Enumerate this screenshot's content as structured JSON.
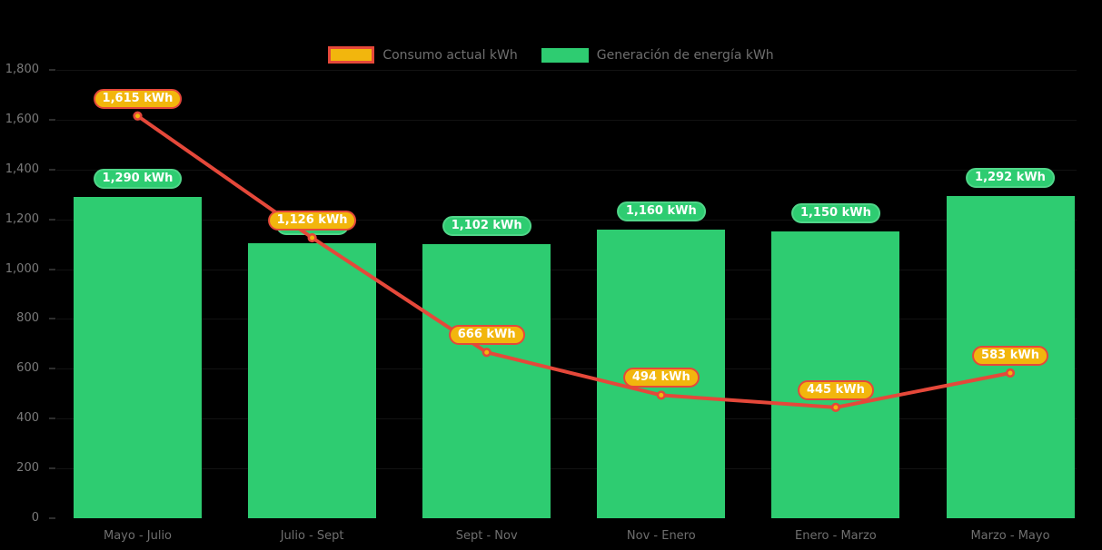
{
  "legend": {
    "items": [
      {
        "label": "Consumo actual kWh",
        "series": "line"
      },
      {
        "label": "Generación de energía kWh",
        "series": "bar"
      }
    ]
  },
  "chart_data": {
    "type": "combo-bar-line",
    "title": "",
    "categories": [
      "Mayo - Julio",
      "Julio - Sept",
      "Sept - Nov",
      "Nov - Enero",
      "Enero - Marzo",
      "Marzo - Mayo"
    ],
    "series": [
      {
        "name": "Generación de energía kWh",
        "type": "bar",
        "color": "#2ecc71",
        "values": [
          1290,
          1105,
          1102,
          1160,
          1150,
          1292
        ],
        "labels": [
          "1,290 kWh",
          null,
          "1,102 kWh",
          "1,160 kWh",
          "1,150 kWh",
          "1,292 kWh"
        ],
        "note": "second bar value label is occluded by the 1,126 kWh line label; 1105 is estimated from bar height"
      },
      {
        "name": "Consumo actual kWh",
        "type": "line",
        "color": "#e5483a",
        "marker_color": "#f2b60d",
        "values": [
          1615,
          1126,
          666,
          494,
          445,
          583
        ],
        "labels": [
          "1,615 kWh",
          "1,126 kWh",
          "666 kWh",
          "494 kWh",
          "445 kWh",
          "583 kWh"
        ]
      }
    ],
    "y_axis": {
      "min": 0,
      "max": 1800,
      "tick_step": 200,
      "tick_labels": [
        "0",
        "200",
        "400",
        "600",
        "800",
        "1,000",
        "1,200",
        "1,400",
        "1,600",
        "1,800"
      ]
    },
    "legend_position": "top-center",
    "grid": "very faint horizontal gridlines",
    "background": "#000000"
  },
  "colors": {
    "background": "#000000",
    "bar_green": "#2ecc71",
    "pill_green_border": "#50d689",
    "line_red": "#e5483a",
    "marker_yellow": "#f2b60d",
    "y_axis_text": "#7a7a7a",
    "x_axis_text": "#6f6f6f",
    "legend_text": "#6f6f6f"
  }
}
